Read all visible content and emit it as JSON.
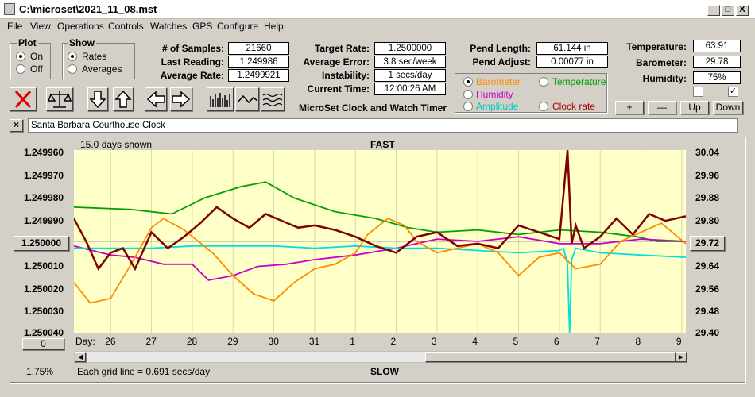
{
  "window": {
    "title": "C:\\microset\\2021_11_08.mst",
    "min": "_",
    "max": "□",
    "close": "X"
  },
  "menu": [
    "File",
    "View",
    "Operations",
    "Controls",
    "Watches",
    "GPS",
    "Configure",
    "Help"
  ],
  "plot_group": {
    "title": "Plot",
    "on": "On",
    "off": "Off",
    "selected": "On"
  },
  "show_group": {
    "title": "Show",
    "rates": "Rates",
    "averages": "Averages",
    "selected": "Rates"
  },
  "stats": {
    "samples_label": "# of Samples:",
    "samples": "21660",
    "last_label": "Last Reading:",
    "last": "1.249986",
    "avg_rate_label": "Average Rate:",
    "avg_rate": "1.2499921",
    "target_label": "Target Rate:",
    "target": "1.2500000",
    "avg_err_label": "Average Error:",
    "avg_err": "3.8 sec/week",
    "instab_label": "Instability:",
    "instab": "1 secs/day",
    "time_label": "Current Time:",
    "time": "12:00:26 AM",
    "pend_len_label": "Pend Length:",
    "pend_len": "61.144 in",
    "pend_adj_label": "Pend Adjust:",
    "pend_adj": "0.00077 in",
    "temp_label": "Temperature:",
    "temp": "63.91",
    "baro_label": "Barometer:",
    "baro": "29.78",
    "hum_label": "Humidity:",
    "hum": "75%"
  },
  "app_name": "MicroSet Clock and Watch Timer",
  "sensor_options": {
    "barometer": "Barometer",
    "temperature": "Temperature",
    "humidity": "Humidity",
    "amplitude": "Amplitude",
    "clock_rate": "Clock rate",
    "selected": "Barometer"
  },
  "colors": {
    "barometer": "#ff8c00",
    "temperature": "#00a000",
    "humidity": "#c800c8",
    "amplitude": "#00e0e0",
    "clock_rate": "#800000"
  },
  "scale_buttons": {
    "plus": "+",
    "minus": "—",
    "up": "Up",
    "down": "Down"
  },
  "clock_name": "Santa Barbara Courthouse Clock",
  "clock_close": "×",
  "chart_header": {
    "days_shown": "15.0 days shown",
    "top": "FAST",
    "bottom": "SLOW"
  },
  "grid_note": "Each grid line = 0.691 secs/day",
  "center_rate": "1.250000",
  "right_center": "29.72",
  "scroll_zero": "0",
  "percent": "1.75%",
  "day_label": "Day:",
  "chart_data": {
    "type": "line",
    "ylabel_left": "",
    "ylabel_right": "",
    "left_axis": {
      "ticks": [
        "1.249960",
        "1.249970",
        "1.249980",
        "1.249990",
        "1.250000",
        "1.250010",
        "1.250020",
        "1.250030",
        "1.250040"
      ],
      "range": [
        1.24996,
        1.25004
      ],
      "inverted": true
    },
    "right_axis": {
      "ticks": [
        "30.04",
        "29.96",
        "29.88",
        "29.80",
        "29.72",
        "29.64",
        "29.56",
        "29.48",
        "29.40"
      ],
      "range": [
        29.4,
        30.04
      ]
    },
    "x_ticks": [
      "26",
      "27",
      "28",
      "29",
      "30",
      "31",
      "1",
      "2",
      "3",
      "4",
      "5",
      "6",
      "7",
      "8",
      "9"
    ],
    "x_range": [
      25.1,
      40.1
    ],
    "series": [
      {
        "key": "temperature",
        "color": "#00a000",
        "x": [
          25.1,
          26.5,
          27.5,
          28.3,
          29.2,
          29.8,
          30.5,
          31.5,
          32.5,
          33.3,
          34,
          35,
          36,
          37,
          38,
          38.9,
          39.4,
          40.1
        ],
        "y": [
          1.249985,
          1.249986,
          1.249988,
          1.249981,
          1.249976,
          1.249974,
          1.249981,
          1.249987,
          1.24999,
          1.249994,
          1.249996,
          1.249995,
          1.249997,
          1.249995,
          1.249996,
          1.249998,
          1.25,
          1.25
        ]
      },
      {
        "key": "humidity",
        "color": "#c800c8",
        "x": [
          25.1,
          26,
          26.6,
          27.3,
          28,
          28.4,
          29,
          29.6,
          30.3,
          31,
          32,
          33,
          34,
          35,
          36,
          37,
          38,
          39,
          40.1
        ],
        "y": [
          1.250002,
          1.250006,
          1.250007,
          1.25001,
          1.25001,
          1.250017,
          1.250015,
          1.250011,
          1.25001,
          1.250008,
          1.250006,
          1.250003,
          1.249999,
          1.25,
          1.249998,
          1.250001,
          1.250001,
          1.249999,
          1.25
        ]
      },
      {
        "key": "amplitude",
        "color": "#00e0e0",
        "x": [
          25.1,
          26,
          27,
          28,
          29,
          30,
          31,
          32,
          33,
          34,
          35,
          36,
          37,
          37.1,
          37.2,
          37.25,
          37.3,
          37.4,
          38,
          39,
          40.1
        ],
        "y": [
          1.250003,
          1.250003,
          1.250003,
          1.250002,
          1.250002,
          1.250002,
          1.250003,
          1.250002,
          1.250003,
          1.250003,
          1.250004,
          1.250005,
          1.250004,
          1.250003,
          1.25001,
          1.25004,
          1.250008,
          1.250003,
          1.250005,
          1.250006,
          1.250007
        ]
      },
      {
        "key": "barometer",
        "color": "#ff8c00",
        "x": [
          25.1,
          25.5,
          26,
          26.5,
          27,
          27.3,
          27.8,
          28.5,
          29,
          29.5,
          30,
          30.5,
          31,
          31.5,
          32,
          32.3,
          32.8,
          33.2,
          33.5,
          34,
          34.5,
          35,
          35.5,
          36,
          36.5,
          37,
          37.4,
          38,
          38.5,
          39,
          39.5,
          40.1
        ],
        "y": [
          1.250018,
          1.250027,
          1.250025,
          1.25001,
          1.249994,
          1.24999,
          1.249995,
          1.250005,
          1.250015,
          1.250023,
          1.250026,
          1.250018,
          1.250012,
          1.25001,
          1.250005,
          1.249997,
          1.24999,
          1.249993,
          1.25,
          1.250005,
          1.250003,
          1.250001,
          1.250005,
          1.250015,
          1.250007,
          1.250005,
          1.250012,
          1.25001,
          1.25,
          1.249996,
          1.249992,
          1.250001
        ]
      },
      {
        "key": "clock_rate",
        "color": "#800000",
        "x": [
          25.1,
          25.4,
          25.7,
          26,
          26.3,
          26.6,
          27,
          27.4,
          27.8,
          28.2,
          28.6,
          29,
          29.4,
          29.8,
          30.2,
          30.6,
          31,
          31.5,
          32,
          32.5,
          33,
          33.5,
          34,
          34.5,
          35,
          35.5,
          36,
          36.5,
          37,
          37.2,
          37.3,
          37.4,
          37.6,
          38,
          38.4,
          38.8,
          39.2,
          39.6,
          40.1
        ],
        "y": [
          1.24999,
          1.25,
          1.250012,
          1.250005,
          1.250003,
          1.250012,
          1.249996,
          1.250003,
          1.249998,
          1.249992,
          1.249985,
          1.24999,
          1.249994,
          1.249988,
          1.249991,
          1.249994,
          1.249993,
          1.249995,
          1.249998,
          1.250002,
          1.250005,
          1.249998,
          1.249996,
          1.250002,
          1.250001,
          1.250003,
          1.249993,
          1.249996,
          1.249999,
          1.24996,
          1.250001,
          1.249993,
          1.250003,
          1.249998,
          1.24999,
          1.249997,
          1.249988,
          1.249991,
          1.249989
        ]
      }
    ]
  }
}
